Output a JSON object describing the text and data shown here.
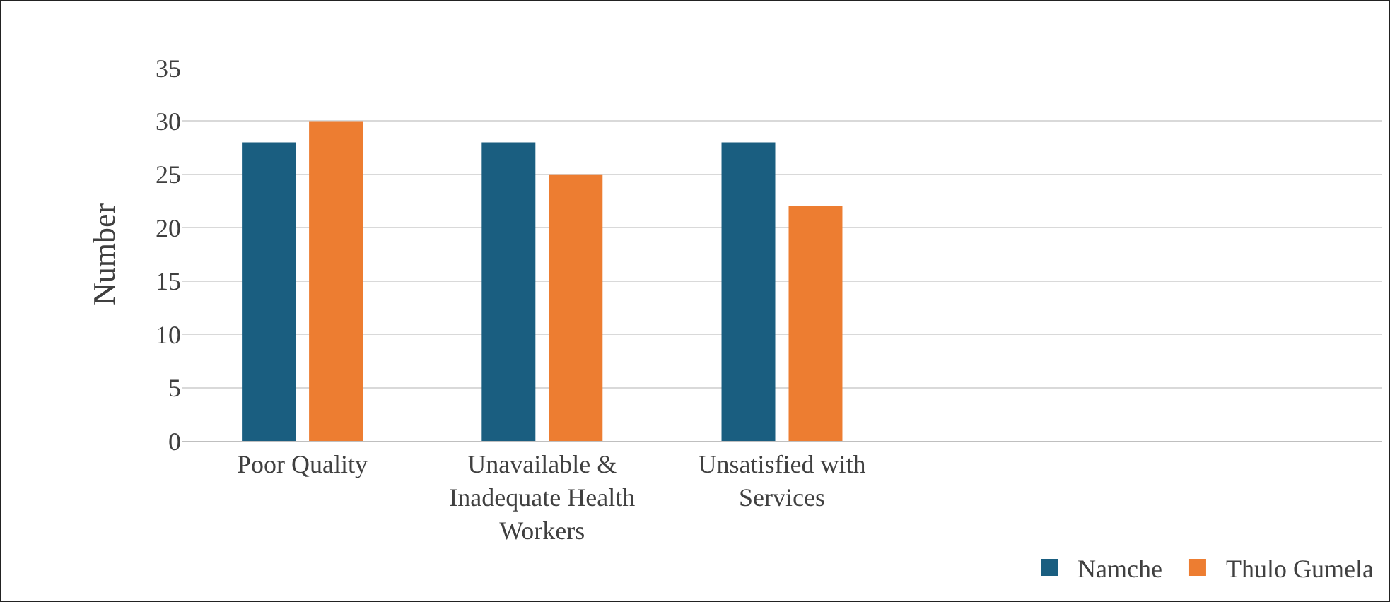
{
  "chart_data": {
    "type": "bar",
    "ylabel": "Number",
    "categories": [
      "Poor Quality",
      "Unavailable & Inadequate Health Workers",
      "Unsatisfied with Services",
      null,
      null
    ],
    "series": [
      {
        "name": "Namche",
        "color": "#1a5e80",
        "values": [
          28,
          28,
          28,
          null,
          null
        ]
      },
      {
        "name": "Thulo Gumela",
        "color": "#ed7d31",
        "values": [
          30,
          25,
          22,
          null,
          null
        ]
      }
    ],
    "ylim": [
      0,
      35
    ],
    "yticks": [
      0,
      5,
      10,
      15,
      20,
      25,
      30,
      35
    ],
    "grid": "y",
    "legend": "bottom right"
  }
}
